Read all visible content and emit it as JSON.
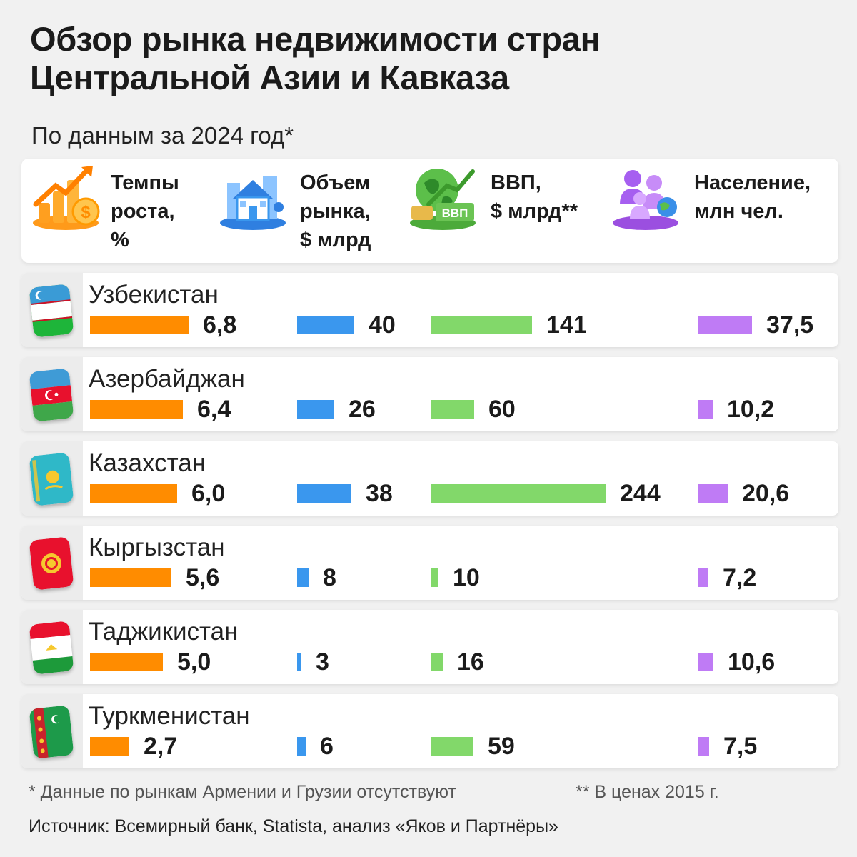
{
  "title": "Обзор рынка недвижимости стран Центральной Азии и Кавказа",
  "subtitle": "По данным за 2024 год*",
  "columns": [
    {
      "label": "Темпы\nроста,\n%",
      "icon": "growth-bars-coin-icon",
      "color": "#ff8c00"
    },
    {
      "label": "Объем\nрынка,\n$ млрд",
      "icon": "house-city-icon",
      "color": "#3a97ee"
    },
    {
      "label": "ВВП,\n$ млрд**",
      "icon": "globe-money-icon",
      "color": "#82d86a"
    },
    {
      "label": "Население,\nмлн чел.",
      "icon": "people-globe-icon",
      "color": "#bf7bf5"
    }
  ],
  "chart_data": {
    "type": "bar",
    "title": "Обзор рынка недвижимости стран Центральной Азии и Кавказа",
    "categories": [
      "Узбекистан",
      "Азербайджан",
      "Казахстан",
      "Кыргызстан",
      "Таджикистан",
      "Туркменистан"
    ],
    "series": [
      {
        "name": "Темпы роста, %",
        "values": [
          6.8,
          6.4,
          6.0,
          5.6,
          5.0,
          2.7
        ],
        "labels": [
          "6,8",
          "6,4",
          "6,0",
          "5,6",
          "5,0",
          "2,7"
        ]
      },
      {
        "name": "Объем рынка, $ млрд",
        "values": [
          40,
          26,
          38,
          8,
          3,
          6
        ],
        "labels": [
          "40",
          "26",
          "38",
          "8",
          "3",
          "6"
        ]
      },
      {
        "name": "ВВП, $ млрд**",
        "values": [
          141,
          60,
          244,
          10,
          16,
          59
        ],
        "labels": [
          "141",
          "60",
          "244",
          "10",
          "16",
          "59"
        ]
      },
      {
        "name": "Население, млн чел.",
        "values": [
          37.5,
          10.2,
          20.6,
          7.2,
          10.6,
          7.5
        ],
        "labels": [
          "37,5",
          "10,2",
          "20,6",
          "7,2",
          "10,6",
          "7,5"
        ]
      }
    ]
  },
  "flags": [
    "uzbekistan-flag-icon",
    "azerbaijan-flag-icon",
    "kazakhstan-flag-icon",
    "kyrgyzstan-flag-icon",
    "tajikistan-flag-icon",
    "turkmenistan-flag-icon"
  ],
  "footnotes": {
    "note1": "* Данные по рынкам Армении и Грузии отсутствуют",
    "note2": "** В ценах 2015 г.",
    "source": "Источник: Всемирный банк, Statista, анализ «Яков и Партнёры»"
  }
}
